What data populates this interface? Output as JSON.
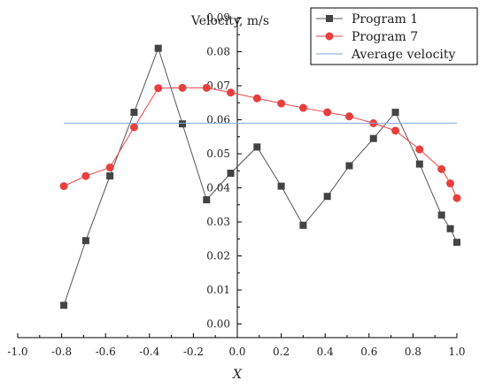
{
  "chart_data": {
    "type": "line",
    "ylabel": "Velocity, m/s",
    "xlabel": "X",
    "xlim": [
      -1.0,
      1.0
    ],
    "ylim": [
      -0.004,
      0.09
    ],
    "x_ticks": [
      -1.0,
      -0.8,
      -0.6,
      -0.4,
      -0.2,
      0.0,
      0.2,
      0.4,
      0.6,
      0.8,
      1.0
    ],
    "x_tick_labels": [
      "-1.0",
      "-0.8",
      "-0.6",
      "-0.4",
      "-0.2",
      "0.0",
      "0.2",
      "0.4",
      "0.6",
      "0.8",
      "1.0"
    ],
    "y_ticks": [
      0.0,
      0.01,
      0.02,
      0.03,
      0.04,
      0.05,
      0.06,
      0.07,
      0.08,
      0.09
    ],
    "y_tick_labels": [
      "0.00",
      "0.01",
      "0.02",
      "0.03",
      "0.04",
      "0.05",
      "0.06",
      "0.07",
      "0.08",
      "0.09"
    ],
    "grid": false,
    "legend_position": "top-right",
    "series": [
      {
        "name": "Program 1",
        "color": "#555555",
        "marker": "square",
        "marker_color": "#444444",
        "x": [
          -0.79,
          -0.69,
          -0.58,
          -0.47,
          -0.36,
          -0.25,
          -0.14,
          -0.03,
          0.09,
          0.2,
          0.3,
          0.41,
          0.51,
          0.62,
          0.72,
          0.83,
          0.93,
          0.97,
          1.0
        ],
        "y": [
          0.0055,
          0.0245,
          0.0435,
          0.0622,
          0.081,
          0.0588,
          0.0365,
          0.0443,
          0.052,
          0.0405,
          0.029,
          0.0375,
          0.0465,
          0.0545,
          0.0622,
          0.047,
          0.032,
          0.028,
          0.024
        ]
      },
      {
        "name": "Program 7",
        "color": "#ee4444",
        "marker": "circle",
        "marker_color": "#e8403e",
        "x": [
          -0.79,
          -0.69,
          -0.58,
          -0.47,
          -0.36,
          -0.25,
          -0.14,
          -0.03,
          0.09,
          0.2,
          0.3,
          0.41,
          0.51,
          0.62,
          0.72,
          0.83,
          0.93,
          0.97,
          1.0
        ],
        "y": [
          0.0405,
          0.0435,
          0.046,
          0.0578,
          0.0693,
          0.0694,
          0.0694,
          0.068,
          0.0663,
          0.0648,
          0.0635,
          0.0622,
          0.061,
          0.059,
          0.0568,
          0.0513,
          0.0455,
          0.0413,
          0.037
        ]
      },
      {
        "name": "Average velocity",
        "color": "#7fa6dc",
        "marker": "none",
        "x": [
          -0.79,
          1.0
        ],
        "y": [
          0.059,
          0.059
        ]
      }
    ]
  }
}
